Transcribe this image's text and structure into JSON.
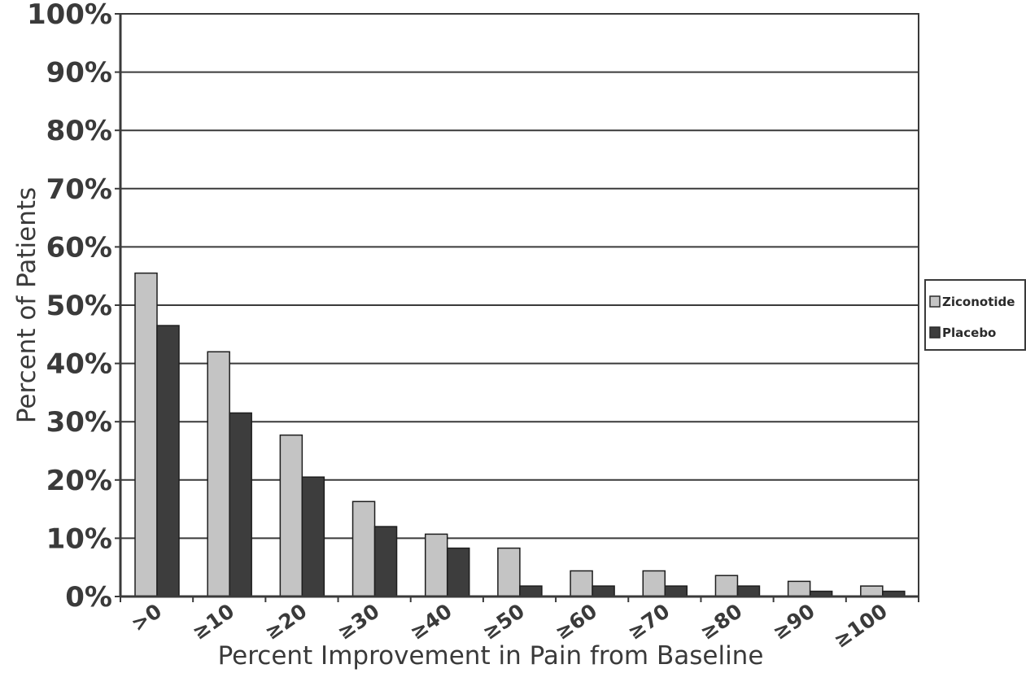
{
  "chart_data": {
    "type": "bar",
    "title": "",
    "xlabel": "Percent Improvement in Pain from Baseline",
    "ylabel": "Percent of Patients",
    "ylim": [
      0,
      100
    ],
    "yticks": [
      "0%",
      "10%",
      "20%",
      "30%",
      "40%",
      "50%",
      "60%",
      "70%",
      "80%",
      "90%",
      "100%"
    ],
    "grid": true,
    "legend_position": "right",
    "categories": [
      ">0",
      "≥10",
      "≥20",
      "≥30",
      "≥40",
      "≥50",
      "≥60",
      "≥70",
      "≥80",
      "≥90",
      "≥100"
    ],
    "series": [
      {
        "name": "Ziconotide",
        "color": "#c4c4c4",
        "values": [
          55.5,
          42,
          27.7,
          16.3,
          10.7,
          8.3,
          4.4,
          4.4,
          3.6,
          2.6,
          1.8
        ]
      },
      {
        "name": "Placebo",
        "color": "#3d3d3d",
        "values": [
          46.5,
          31.5,
          20.5,
          12,
          8.3,
          1.8,
          1.8,
          1.8,
          1.8,
          0.9,
          0.9
        ]
      }
    ]
  }
}
